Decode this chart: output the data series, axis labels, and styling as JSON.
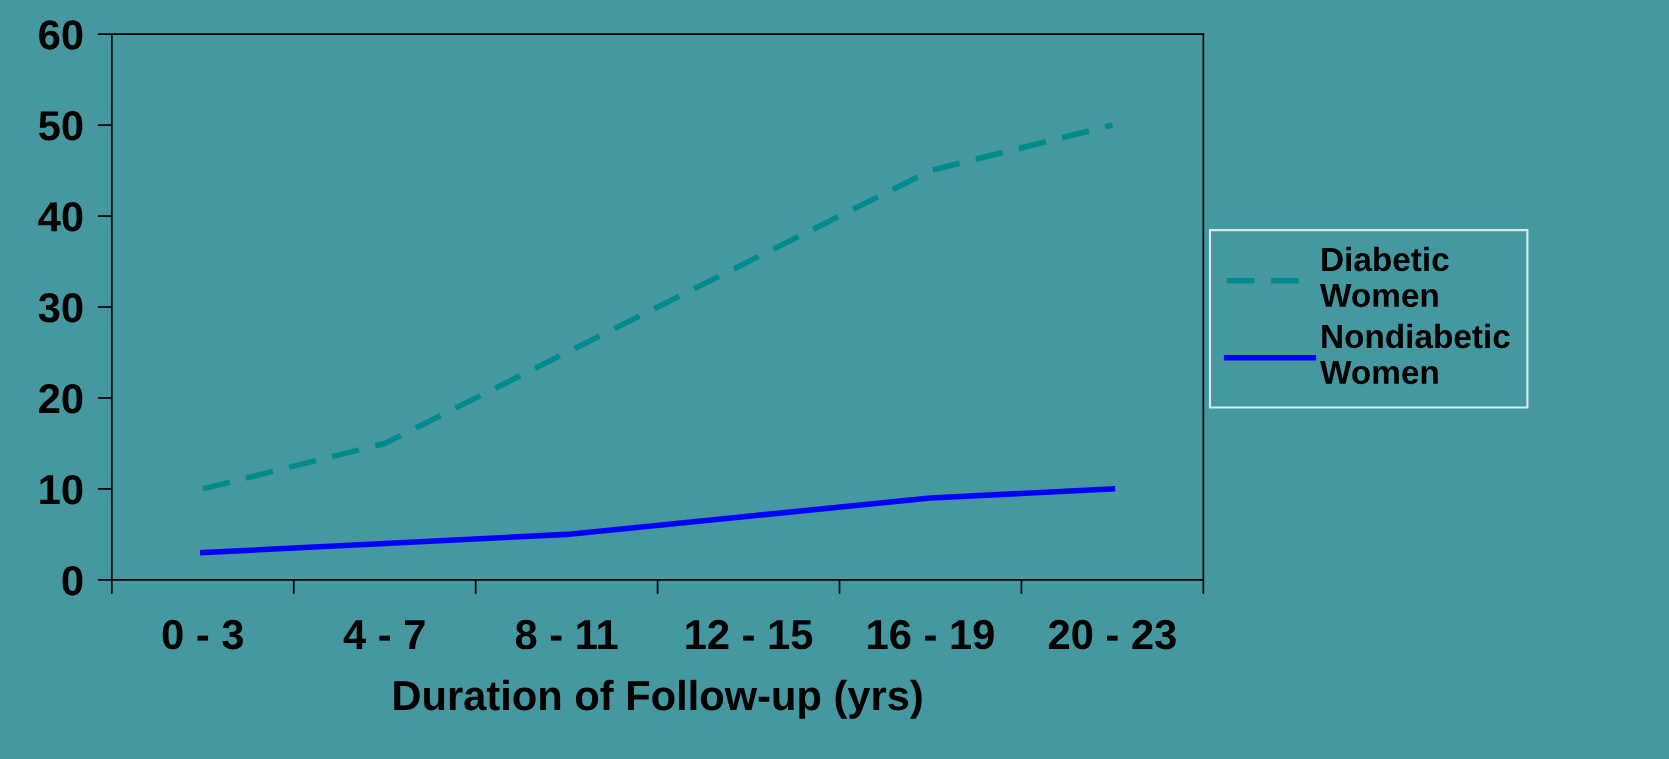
{
  "chart_data": {
    "type": "line",
    "xlabel": "Duration of Follow-up (yrs)",
    "categories": [
      "0 - 3",
      "4 - 7",
      "8 - 11",
      "12 - 15",
      "16 - 19",
      "20 - 23"
    ],
    "series": [
      {
        "name": "Diabetic Women",
        "color": "#008b8b",
        "line_style": "dashed",
        "values": [
          10,
          15,
          25,
          35,
          45,
          50
        ]
      },
      {
        "name": "Nondiabetic Women",
        "color": "#0000ff",
        "line_style": "solid",
        "values": [
          3,
          4,
          5,
          7,
          9,
          10
        ]
      }
    ],
    "ylim": [
      0,
      60
    ],
    "yticks": [
      0,
      10,
      20,
      30,
      40,
      50,
      60
    ],
    "grid": false,
    "legend": "right",
    "marker": "none"
  }
}
